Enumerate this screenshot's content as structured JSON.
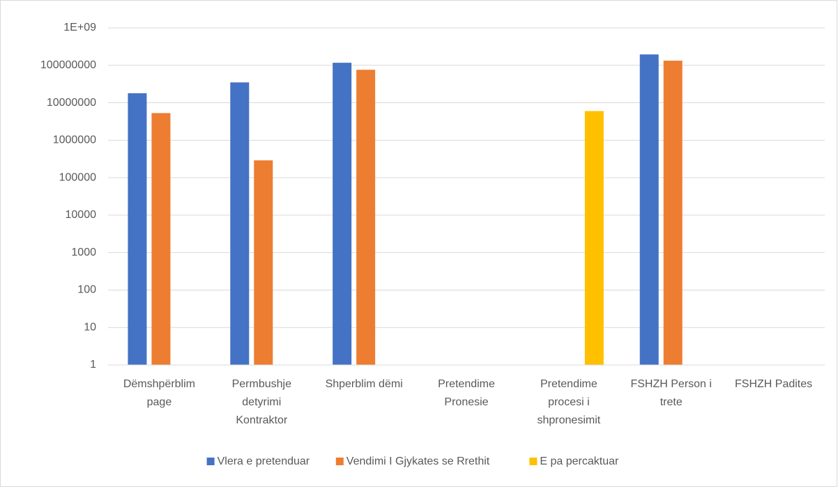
{
  "chart_data": {
    "type": "bar",
    "log_scale": true,
    "grid": true,
    "legend": "bottom",
    "categories": [
      "Dëmshpërblim page",
      "Permbushje detyrimi Kontraktor",
      "Shperblim dëmi",
      "Pretendime Pronesie",
      "Pretendime procesi i shpronesimit",
      "FSHZH Person i trete",
      "FSHZH Padites"
    ],
    "series": [
      {
        "name": "Vlera e pretenduar",
        "color": "#4472c4",
        "values": [
          18000000,
          35000000,
          117000000,
          null,
          null,
          195000000,
          null
        ]
      },
      {
        "name": "Vendimi I Gjykates se Rrethit",
        "color": "#ed7d31",
        "values": [
          5300000,
          290000,
          76000000,
          null,
          null,
          133000000,
          null
        ]
      },
      {
        "name": "E pa percaktuar",
        "color": "#ffc000",
        "values": [
          null,
          null,
          null,
          null,
          6000000,
          null,
          null
        ]
      }
    ],
    "ylim": [
      1,
      1000000000
    ],
    "yticks": [
      1,
      10,
      100,
      1000,
      10000,
      100000,
      1000000,
      10000000,
      100000000,
      {
        "value": 1000000000,
        "label": "1E+09"
      }
    ]
  }
}
